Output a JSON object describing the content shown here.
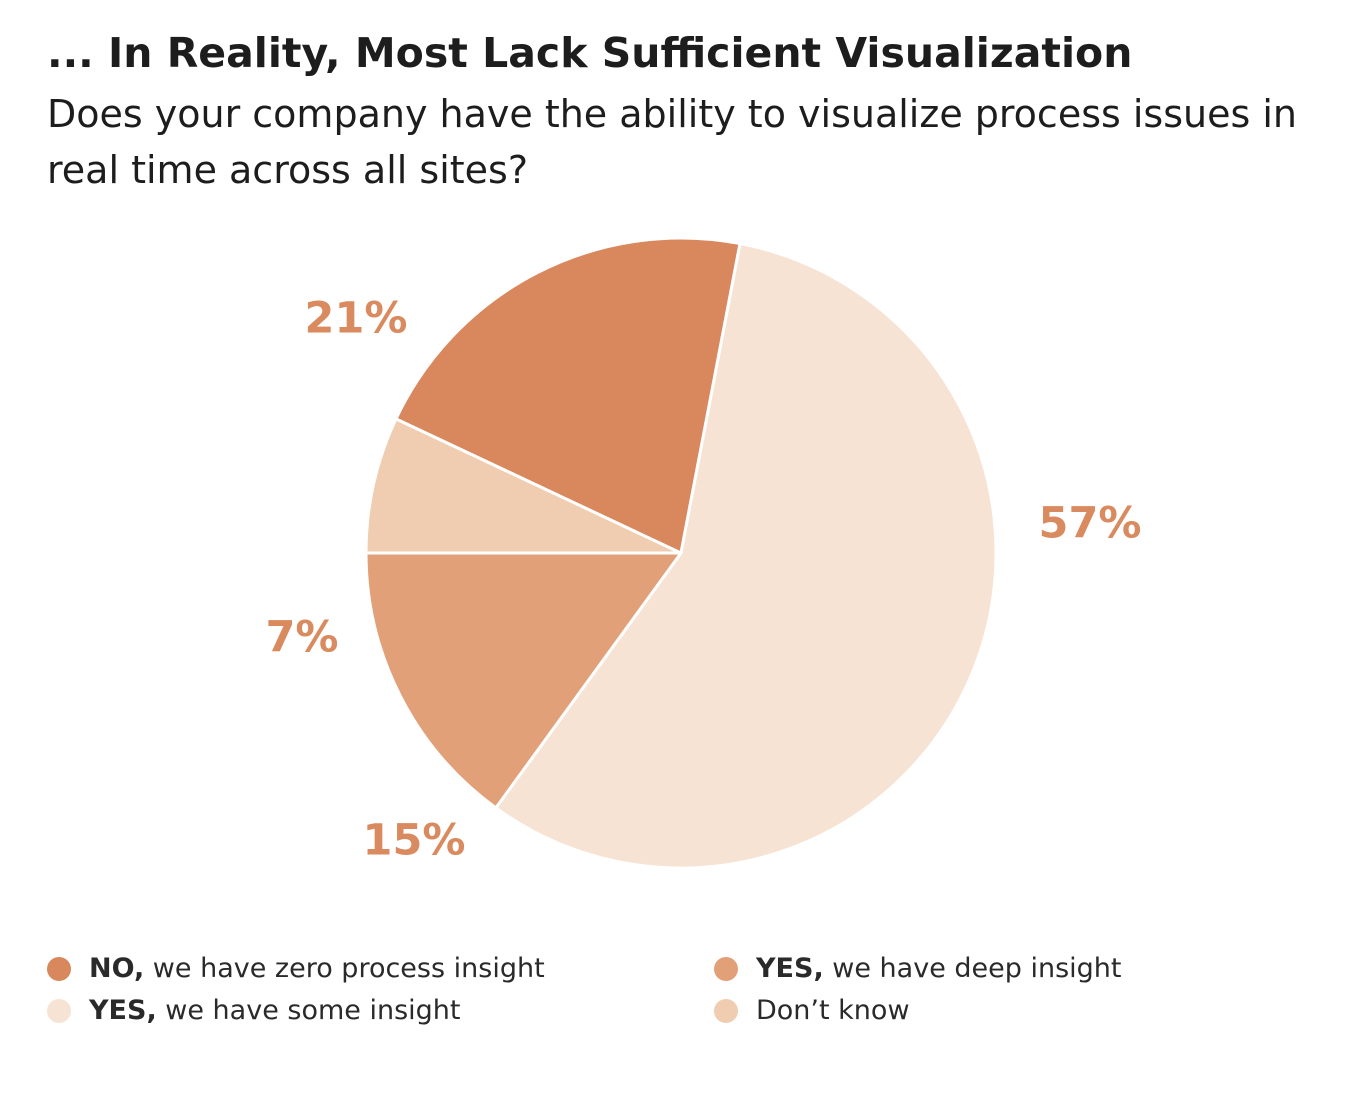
{
  "chart_data": {
    "type": "pie",
    "title": "... In Reality, Most Lack Sufficient Visualization",
    "subtitle": "Does your company have the ability to visualize process issues in real time across all sites?",
    "slices": [
      {
        "key": "dont_know",
        "label": "Don’t know",
        "value": 7,
        "display": "7%",
        "color": "#f0cdb0"
      },
      {
        "key": "zero",
        "label": "NO, we have zero process insight",
        "value": 21,
        "display": "21%",
        "color": "#d9875c"
      },
      {
        "key": "some",
        "label": "YES, we have some insight",
        "value": 57,
        "display": "57%",
        "color": "#f7e3d4"
      },
      {
        "key": "deep",
        "label": "YES, we have deep insight",
        "value": 15,
        "display": "15%",
        "color": "#e1a078"
      }
    ],
    "label_color": "#d98a5e"
  },
  "legend": {
    "items": [
      {
        "key": "zero",
        "bold": "NO,",
        "rest": " we have zero process insight",
        "color": "#d9875c"
      },
      {
        "key": "some",
        "bold": "YES,",
        "rest": " we have some insight",
        "color": "#f7e3d4"
      },
      {
        "key": "deep",
        "bold": "YES,",
        "rest": " we have deep insight",
        "color": "#e1a078"
      },
      {
        "key": "dont_know",
        "bold": "",
        "rest": "Don’t know",
        "color": "#f0cdb0"
      }
    ]
  }
}
